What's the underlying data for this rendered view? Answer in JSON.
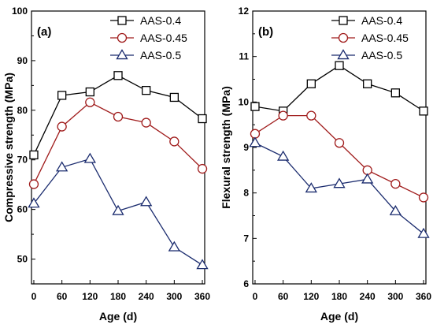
{
  "chart_data": [
    {
      "type": "line",
      "panel_label": "(a)",
      "xlabel": "Age (d)",
      "ylabel": "Compressive strength (MPa)",
      "xlim": [
        -5,
        365
      ],
      "ylim": [
        45,
        100
      ],
      "x_ticks": [
        0,
        60,
        120,
        180,
        240,
        300,
        360
      ],
      "y_ticks": [
        50,
        60,
        70,
        80,
        90,
        100
      ],
      "legend_position": "top-right",
      "x": [
        0,
        60,
        120,
        180,
        240,
        300,
        360
      ],
      "series": [
        {
          "name": "AAS-0.4",
          "marker": "square",
          "color": "#000000",
          "values": [
            71.0,
            83.0,
            83.7,
            87.0,
            84.0,
            82.6,
            78.3
          ]
        },
        {
          "name": "AAS-0.45",
          "marker": "circle",
          "color": "#a01c1c",
          "values": [
            65.1,
            76.7,
            81.6,
            78.7,
            77.5,
            73.7,
            68.2
          ]
        },
        {
          "name": "AAS-0.5",
          "marker": "triangle",
          "color": "#1a2b6e",
          "values": [
            61.2,
            68.5,
            70.2,
            59.7,
            61.5,
            52.4,
            48.8
          ]
        }
      ]
    },
    {
      "type": "line",
      "panel_label": "(b)",
      "xlabel": "Age (d)",
      "ylabel": "Flexural strength (MPa)",
      "xlim": [
        -5,
        365
      ],
      "ylim": [
        6,
        12
      ],
      "x_ticks": [
        0,
        60,
        120,
        180,
        240,
        300,
        360
      ],
      "y_ticks": [
        6,
        7,
        8,
        9,
        10,
        11,
        12
      ],
      "legend_position": "top-right",
      "x": [
        0,
        60,
        120,
        180,
        240,
        300,
        360
      ],
      "series": [
        {
          "name": "AAS-0.4",
          "marker": "square",
          "color": "#000000",
          "values": [
            9.9,
            9.8,
            10.4,
            10.8,
            10.4,
            10.2,
            9.8
          ]
        },
        {
          "name": "AAS-0.45",
          "marker": "circle",
          "color": "#a01c1c",
          "values": [
            9.3,
            9.7,
            9.7,
            9.1,
            8.5,
            8.2,
            7.9
          ]
        },
        {
          "name": "AAS-0.5",
          "marker": "triangle",
          "color": "#1a2b6e",
          "values": [
            9.1,
            8.8,
            8.1,
            8.2,
            8.3,
            7.6,
            7.1
          ]
        }
      ]
    }
  ]
}
